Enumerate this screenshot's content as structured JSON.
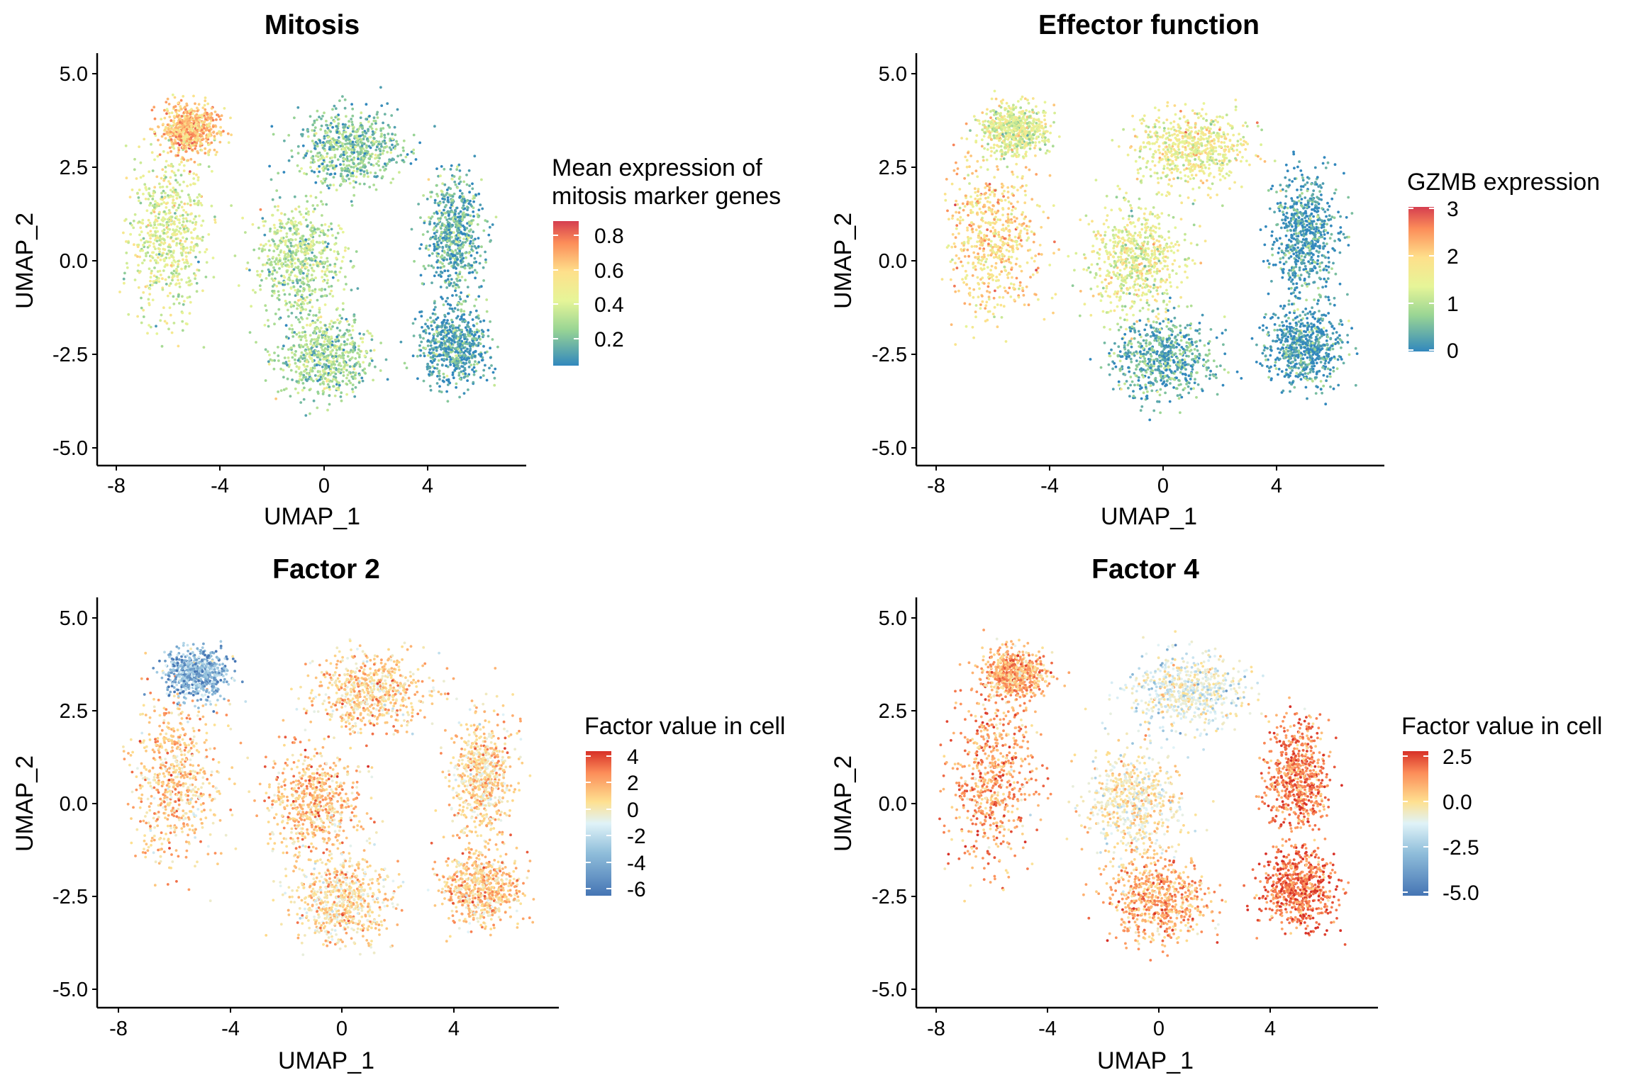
{
  "figure": {
    "panels": [
      {
        "id": "mitosis",
        "title": "Mitosis",
        "xlabel": "UMAP_1",
        "ylabel": "UMAP_2",
        "x_ticks": [
          "-8",
          "-4",
          "0",
          "4"
        ],
        "y_ticks": [
          "5.0",
          "2.5",
          "0.0",
          "-2.5",
          "-5.0"
        ],
        "legend_title": [
          "Mean expression of",
          "mitosis marker genes"
        ],
        "legend_ticks": [
          "0.8",
          "0.6",
          "0.4",
          "0.2"
        ]
      },
      {
        "id": "effector",
        "title": "Effector function",
        "xlabel": "UMAP_1",
        "ylabel": "UMAP_2",
        "x_ticks": [
          "-8",
          "-4",
          "0",
          "4"
        ],
        "y_ticks": [
          "5.0",
          "2.5",
          "0.0",
          "-2.5",
          "-5.0"
        ],
        "legend_title": [
          "GZMB expression"
        ],
        "legend_ticks": [
          "3",
          "2",
          "1",
          "0"
        ]
      },
      {
        "id": "factor2",
        "title": "Factor 2",
        "xlabel": "UMAP_1",
        "ylabel": "UMAP_2",
        "x_ticks": [
          "-8",
          "-4",
          "0",
          "4"
        ],
        "y_ticks": [
          "5.0",
          "2.5",
          "0.0",
          "-2.5",
          "-5.0"
        ],
        "legend_title": [
          "Factor value in cell"
        ],
        "legend_ticks": [
          "4",
          "2",
          "0",
          "-2",
          "-4",
          "-6"
        ]
      },
      {
        "id": "factor4",
        "title": "Factor 4",
        "xlabel": "UMAP_1",
        "ylabel": "UMAP_2",
        "x_ticks": [
          "-8",
          "-4",
          "0",
          "4"
        ],
        "y_ticks": [
          "5.0",
          "2.5",
          "0.0",
          "-2.5",
          "-5.0"
        ],
        "legend_title": [
          "Factor value in cell"
        ],
        "legend_ticks": [
          "2.5",
          "0.0",
          "-2.5",
          "-5.0"
        ]
      }
    ]
  },
  "chart_data": [
    {
      "type": "scatter",
      "title": "Mitosis",
      "xlabel": "UMAP_1",
      "ylabel": "UMAP_2",
      "xlim": [
        -8.5,
        7.3
      ],
      "ylim": [
        -5.5,
        5.5
      ],
      "color_scale": {
        "name": "Mean expression of mitosis marker genes",
        "range": [
          0.05,
          0.9
        ],
        "ticks": [
          0.2,
          0.4,
          0.6,
          0.8
        ],
        "palette": [
          "#3288bd",
          "#99d594",
          "#e6f598",
          "#fee08b",
          "#fc8d59",
          "#d53e4f"
        ]
      },
      "clusters": [
        {
          "name": "left",
          "center": [
            -6.0,
            0.6
          ],
          "spread": [
            1.4,
            2.0
          ],
          "value": 0.38
        },
        {
          "name": "top-left",
          "center": [
            -5.2,
            3.5
          ],
          "spread": [
            1.0,
            0.6
          ],
          "value": 0.62
        },
        {
          "name": "top-middle",
          "center": [
            1.0,
            3.0
          ],
          "spread": [
            1.8,
            0.9
          ],
          "value": 0.2
        },
        {
          "name": "right",
          "center": [
            5.0,
            0.7
          ],
          "spread": [
            1.0,
            1.4
          ],
          "value": 0.15
        },
        {
          "name": "bottom-middle",
          "center": [
            0.0,
            -2.6
          ],
          "spread": [
            1.6,
            1.0
          ],
          "value": 0.25
        },
        {
          "name": "bottom-right",
          "center": [
            5.0,
            -2.3
          ],
          "spread": [
            1.2,
            0.9
          ],
          "value": 0.1
        },
        {
          "name": "center",
          "center": [
            -1.0,
            0.0
          ],
          "spread": [
            1.5,
            1.3
          ],
          "value": 0.3
        }
      ]
    },
    {
      "type": "scatter",
      "title": "Effector function",
      "xlabel": "UMAP_1",
      "ylabel": "UMAP_2",
      "xlim": [
        -8.5,
        7.3
      ],
      "ylim": [
        -5.5,
        5.5
      ],
      "color_scale": {
        "name": "GZMB expression",
        "range": [
          0,
          3
        ],
        "ticks": [
          0,
          1,
          2,
          3
        ],
        "palette": [
          "#3288bd",
          "#99d594",
          "#e6f598",
          "#fee08b",
          "#fc8d59",
          "#d53e4f"
        ]
      },
      "clusters": [
        {
          "name": "left",
          "center": [
            -6.0,
            0.6
          ],
          "spread": [
            1.4,
            2.0
          ],
          "value": 1.8
        },
        {
          "name": "top-left",
          "center": [
            -5.2,
            3.5
          ],
          "spread": [
            1.0,
            0.6
          ],
          "value": 1.2
        },
        {
          "name": "top-middle",
          "center": [
            1.0,
            3.0
          ],
          "spread": [
            1.8,
            0.9
          ],
          "value": 1.4
        },
        {
          "name": "right",
          "center": [
            5.0,
            0.7
          ],
          "spread": [
            1.0,
            1.4
          ],
          "value": 0.1
        },
        {
          "name": "bottom-middle",
          "center": [
            0.0,
            -2.6
          ],
          "spread": [
            1.6,
            1.0
          ],
          "value": 0.3
        },
        {
          "name": "bottom-right",
          "center": [
            5.0,
            -2.3
          ],
          "spread": [
            1.2,
            0.9
          ],
          "value": 0.1
        },
        {
          "name": "center",
          "center": [
            -1.0,
            0.0
          ],
          "spread": [
            1.5,
            1.3
          ],
          "value": 1.3
        }
      ]
    },
    {
      "type": "scatter",
      "title": "Factor 2",
      "xlabel": "UMAP_1",
      "ylabel": "UMAP_2",
      "xlim": [
        -8.5,
        7.3
      ],
      "ylim": [
        -5.5,
        5.5
      ],
      "color_scale": {
        "name": "Factor value in cell",
        "range": [
          -6.5,
          4.5
        ],
        "ticks": [
          -6,
          -4,
          -2,
          0,
          2,
          4
        ],
        "palette": [
          "#4575b4",
          "#91bfdb",
          "#e0f3f8",
          "#fee090",
          "#fc8d59",
          "#d73027"
        ]
      },
      "clusters": [
        {
          "name": "left",
          "center": [
            -6.0,
            0.6
          ],
          "spread": [
            1.4,
            2.0
          ],
          "value": 0.5
        },
        {
          "name": "top-left",
          "center": [
            -5.2,
            3.5
          ],
          "spread": [
            1.0,
            0.6
          ],
          "value": -4.5
        },
        {
          "name": "top-middle",
          "center": [
            1.0,
            3.0
          ],
          "spread": [
            1.8,
            0.9
          ],
          "value": 0.4
        },
        {
          "name": "right",
          "center": [
            5.0,
            0.7
          ],
          "spread": [
            1.0,
            1.4
          ],
          "value": 0.2
        },
        {
          "name": "bottom-middle",
          "center": [
            0.0,
            -2.6
          ],
          "spread": [
            1.6,
            1.0
          ],
          "value": 0.0
        },
        {
          "name": "bottom-right",
          "center": [
            5.0,
            -2.3
          ],
          "spread": [
            1.2,
            0.9
          ],
          "value": 0.6
        },
        {
          "name": "center",
          "center": [
            -1.0,
            0.0
          ],
          "spread": [
            1.5,
            1.3
          ],
          "value": 0.8
        }
      ]
    },
    {
      "type": "scatter",
      "title": "Factor 4",
      "xlabel": "UMAP_1",
      "ylabel": "UMAP_2",
      "xlim": [
        -8.5,
        7.3
      ],
      "ylim": [
        -5.5,
        5.5
      ],
      "color_scale": {
        "name": "Factor value in cell",
        "range": [
          -5.5,
          3.0
        ],
        "ticks": [
          -5.0,
          -2.5,
          0.0,
          2.5
        ],
        "palette": [
          "#4575b4",
          "#91bfdb",
          "#e0f3f8",
          "#fee090",
          "#fc8d59",
          "#d73027"
        ]
      },
      "clusters": [
        {
          "name": "left",
          "center": [
            -6.0,
            0.6
          ],
          "spread": [
            1.4,
            2.0
          ],
          "value": 0.8
        },
        {
          "name": "top-left",
          "center": [
            -5.2,
            3.5
          ],
          "spread": [
            1.0,
            0.6
          ],
          "value": 0.6
        },
        {
          "name": "top-middle",
          "center": [
            1.0,
            3.0
          ],
          "spread": [
            1.8,
            0.9
          ],
          "value": -1.8
        },
        {
          "name": "right",
          "center": [
            5.0,
            0.7
          ],
          "spread": [
            1.0,
            1.4
          ],
          "value": 1.5
        },
        {
          "name": "bottom-middle",
          "center": [
            0.0,
            -2.6
          ],
          "spread": [
            1.6,
            1.0
          ],
          "value": 0.6
        },
        {
          "name": "bottom-right",
          "center": [
            5.0,
            -2.3
          ],
          "spread": [
            1.2,
            0.9
          ],
          "value": 1.9
        },
        {
          "name": "center",
          "center": [
            -1.0,
            0.0
          ],
          "spread": [
            1.5,
            1.3
          ],
          "value": -1.0
        }
      ]
    }
  ]
}
